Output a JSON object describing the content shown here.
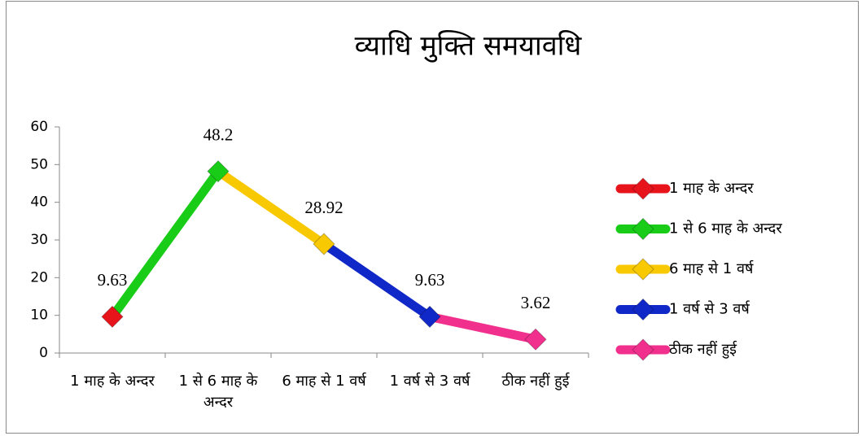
{
  "chart_data": {
    "type": "line",
    "title": "व्याधि मुक्ति समयावधि",
    "categories": [
      "1 माह के अन्दर",
      "1 से 6 माह के अन्दर",
      "6 माह से 1 वर्ष",
      "1 वर्ष से 3 वर्ष",
      "ठीक नहीं हुई"
    ],
    "values": [
      9.63,
      48.2,
      28.92,
      9.63,
      3.62
    ],
    "colors": [
      "#e8141c",
      "#18cc18",
      "#f8c800",
      "#1028c8",
      "#f0308c"
    ],
    "ylim": [
      0,
      60
    ],
    "yticks": [
      0,
      10,
      20,
      30,
      40,
      50,
      60
    ],
    "legend": "right"
  }
}
